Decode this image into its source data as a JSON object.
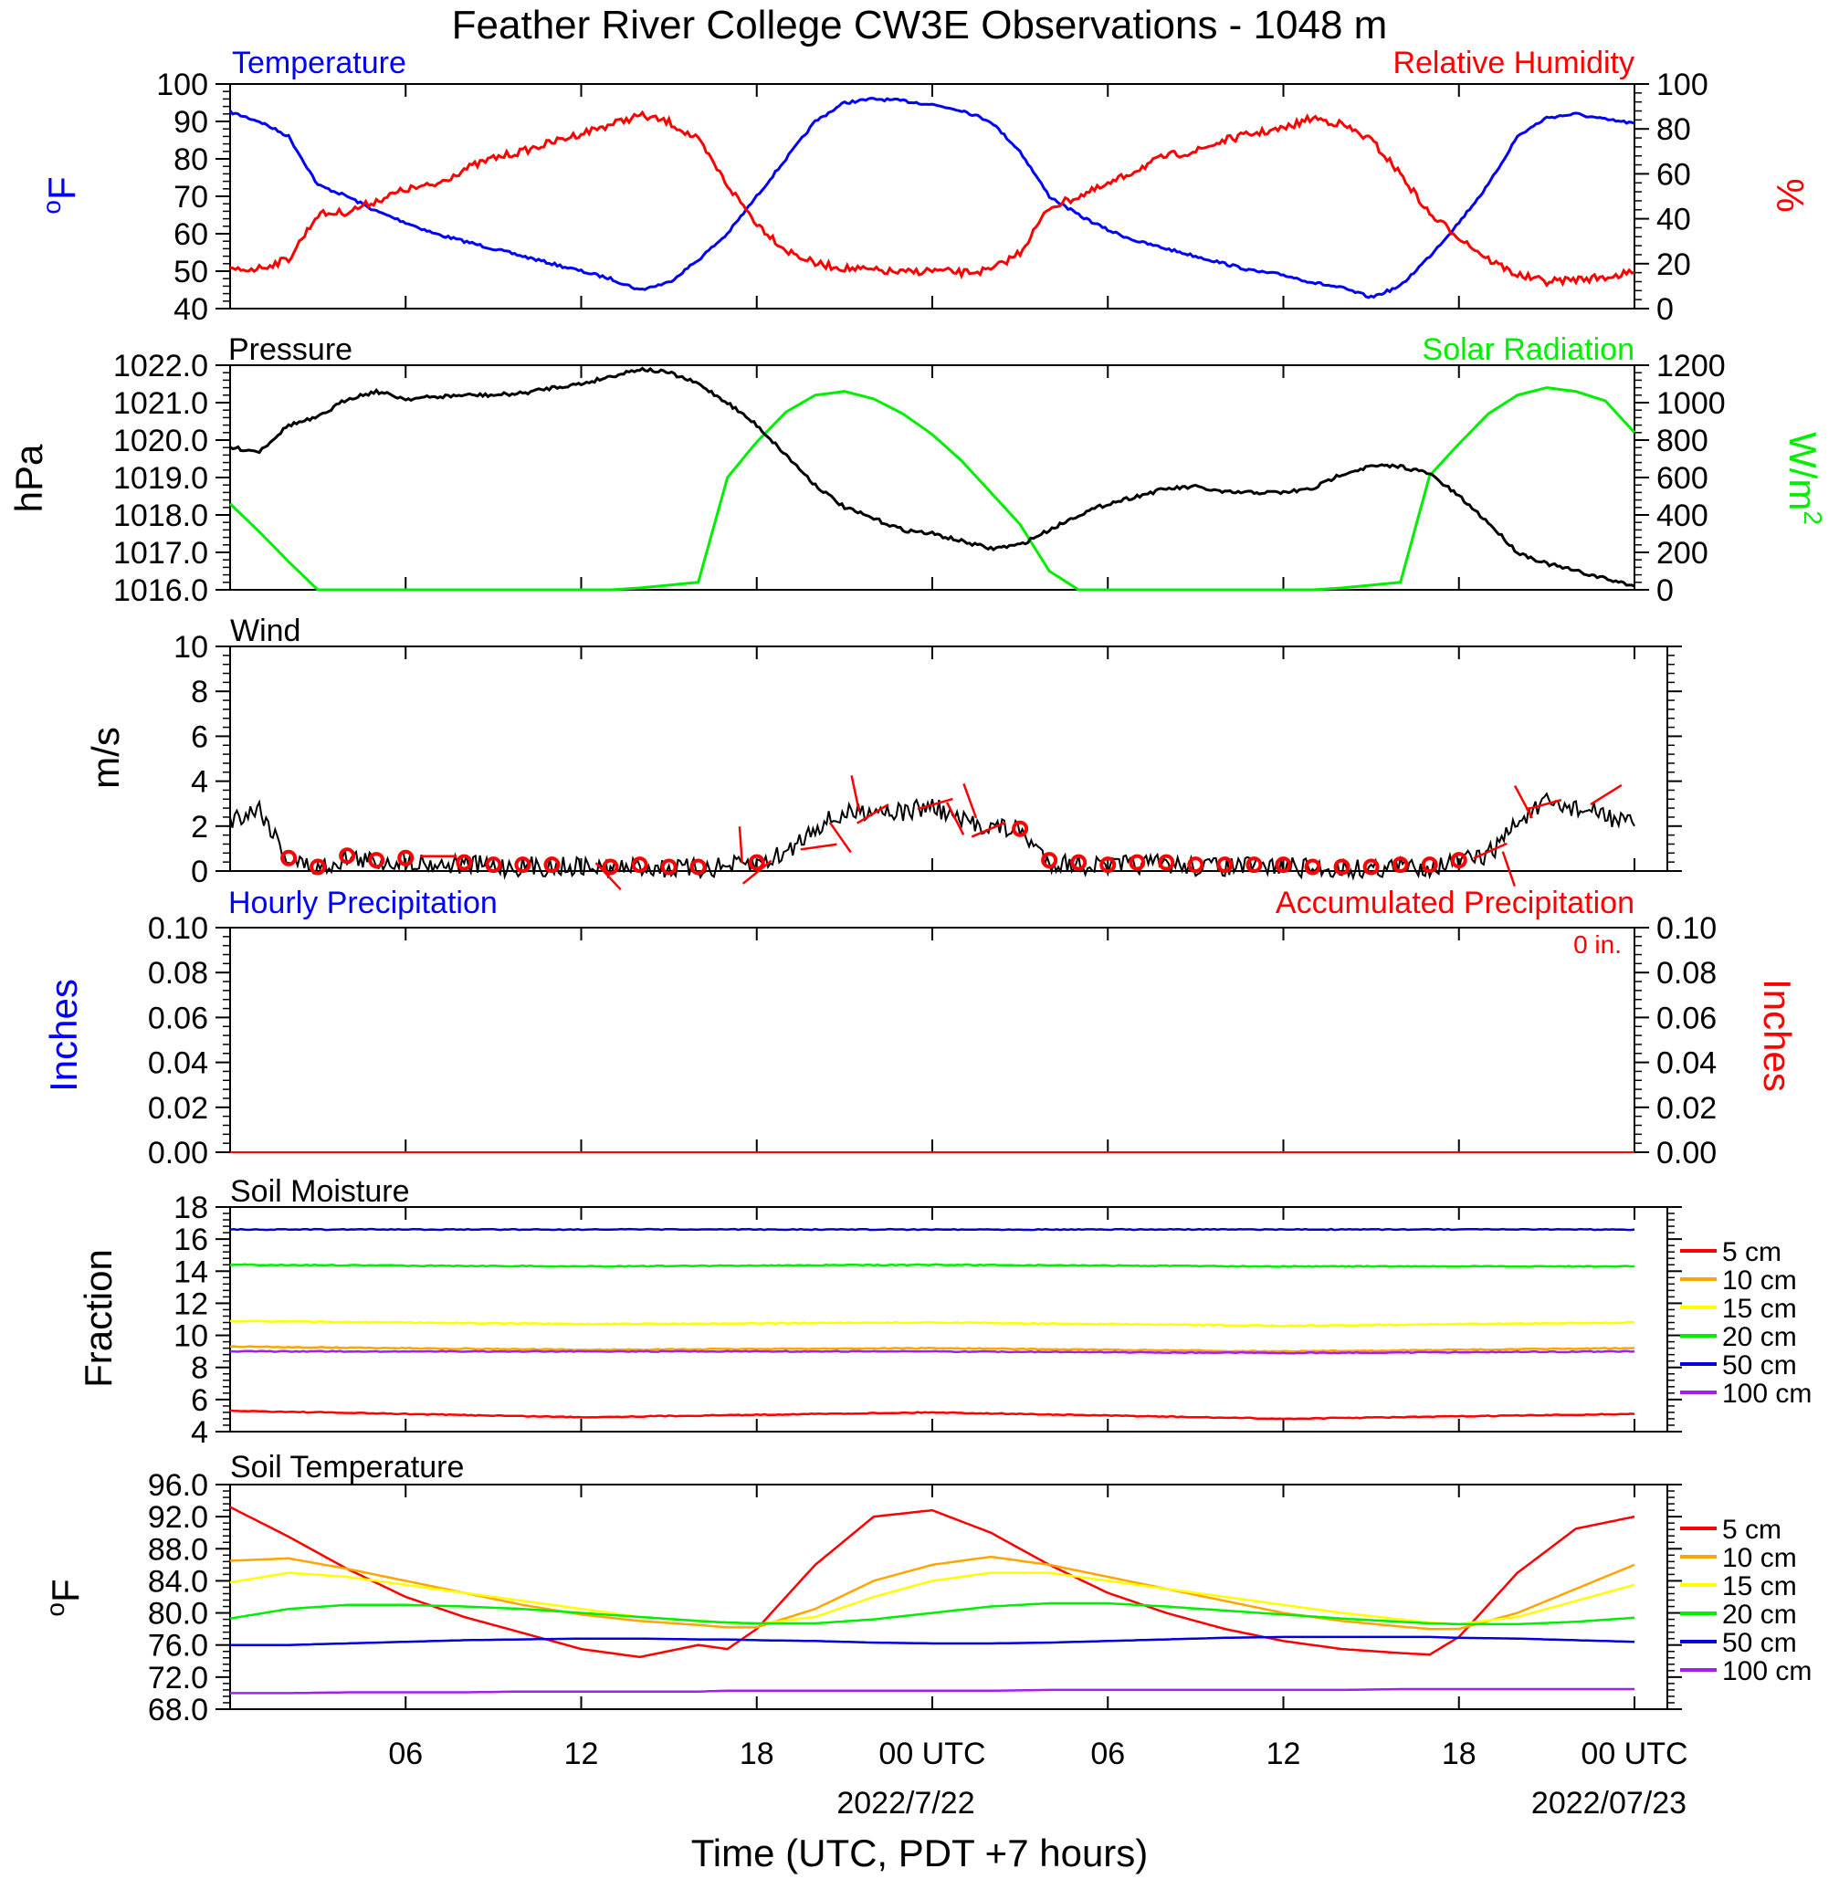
{
  "title": "Feather River College CW3E Observations - 1048 m",
  "xlabel": "Time (UTC, PDT +7 hours)",
  "x_ticks": [
    "06",
    "12",
    "18",
    "00 UTC",
    "06",
    "12",
    "18",
    "00 UTC"
  ],
  "x_dates": [
    "2022/7/22",
    "2022/07/23"
  ],
  "colors": {
    "temperature": "#0000ff",
    "humidity": "#ff0000",
    "pressure": "#000000",
    "solar": "#00ee00",
    "wind": "#000000",
    "barbs": "#ff0000"
  },
  "chart_data": [
    {
      "type": "line",
      "panel": "temperature-humidity",
      "title_left": "Temperature",
      "title_right": "Relative Humidity",
      "ylabel_left": "oF",
      "ylabel_right": "%",
      "ylim_left": [
        40,
        100
      ],
      "ylim_right": [
        0,
        100
      ],
      "yticks_left": [
        "40",
        "50",
        "60",
        "70",
        "80",
        "90",
        "100"
      ],
      "yticks_right": [
        "0",
        "20",
        "40",
        "60",
        "80",
        "100"
      ],
      "x_hours": [
        0,
        1,
        2,
        3,
        4,
        5,
        6,
        7,
        8,
        9,
        10,
        11,
        12,
        13,
        14,
        15,
        16,
        17,
        18,
        19,
        20,
        21,
        22,
        23,
        24,
        25,
        26,
        27,
        28,
        29,
        30,
        31,
        32,
        33,
        34,
        35,
        36,
        37,
        38,
        39,
        40,
        41,
        42,
        43,
        44,
        45,
        46,
        47,
        48
      ],
      "series": [
        {
          "name": "Temperature",
          "axis": "left",
          "values": [
            92.5,
            90,
            86,
            73,
            70,
            66,
            63,
            60,
            58,
            56,
            54,
            52,
            50,
            48,
            45,
            47,
            53,
            60,
            70,
            80,
            90,
            95,
            96,
            95.5,
            94.5,
            93,
            90,
            82,
            70,
            65,
            61,
            58,
            56,
            54,
            52,
            50,
            49,
            47,
            45.5,
            43,
            46,
            54,
            63,
            73,
            86,
            91,
            92,
            90.5,
            89.5
          ]
        },
        {
          "name": "Relative Humidity",
          "axis": "right",
          "values": [
            17,
            18,
            22,
            42,
            43,
            48,
            53,
            55,
            62,
            67,
            70,
            74,
            78,
            82,
            86,
            83,
            75,
            55,
            38,
            26,
            20,
            18,
            17,
            16,
            17,
            16,
            17,
            25,
            45,
            50,
            55,
            62,
            68,
            70,
            75,
            78,
            80,
            85,
            82,
            75,
            60,
            42,
            32,
            22,
            15,
            12,
            13,
            14,
            16
          ]
        }
      ]
    },
    {
      "type": "line",
      "panel": "pressure-solar",
      "title_left": "Pressure",
      "title_right": "Solar Radiation",
      "ylabel_left": "hPa",
      "ylabel_right": "W/m2",
      "ylim_left": [
        1016,
        1022
      ],
      "ylim_right": [
        0,
        1200
      ],
      "yticks_left": [
        "1016.0",
        "1017.0",
        "1018.0",
        "1019.0",
        "1020.0",
        "1021.0",
        "1022.0"
      ],
      "yticks_right": [
        "0",
        "200",
        "400",
        "600",
        "800",
        "1000",
        "1200"
      ],
      "x_hours": [
        0,
        1,
        2,
        3,
        4,
        5,
        6,
        7,
        8,
        9,
        10,
        11,
        12,
        13,
        14,
        15,
        16,
        17,
        18,
        19,
        20,
        21,
        22,
        23,
        24,
        25,
        26,
        27,
        28,
        29,
        30,
        31,
        32,
        33,
        34,
        35,
        36,
        37,
        38,
        39,
        40,
        41,
        42,
        43,
        44,
        45,
        46,
        47,
        48
      ],
      "series": [
        {
          "name": "Pressure",
          "axis": "left",
          "values": [
            1019.8,
            1019.7,
            1020.4,
            1020.6,
            1021.1,
            1021.3,
            1021.1,
            1021.15,
            1021.2,
            1021.2,
            1021.25,
            1021.4,
            1021.5,
            1021.7,
            1021.9,
            1021.8,
            1021.5,
            1021.0,
            1020.4,
            1019.6,
            1018.8,
            1018.2,
            1017.9,
            1017.6,
            1017.5,
            1017.3,
            1017.1,
            1017.2,
            1017.6,
            1018.0,
            1018.3,
            1018.5,
            1018.7,
            1018.75,
            1018.6,
            1018.6,
            1018.6,
            1018.7,
            1019.1,
            1019.3,
            1019.3,
            1019.1,
            1018.5,
            1017.8,
            1017.0,
            1016.7,
            1016.5,
            1016.3,
            1016.1
          ]
        },
        {
          "name": "Solar Radiation",
          "axis": "right",
          "values": [
            460,
            310,
            150,
            0,
            0,
            0,
            0,
            0,
            0,
            0,
            0,
            0,
            0,
            0,
            10,
            25,
            40,
            600,
            790,
            950,
            1040,
            1060,
            1020,
            940,
            830,
            690,
            520,
            350,
            100,
            0,
            0,
            0,
            0,
            0,
            0,
            0,
            0,
            0,
            10,
            25,
            40,
            610,
            780,
            940,
            1040,
            1080,
            1060,
            1010,
            840
          ]
        }
      ]
    },
    {
      "type": "line",
      "panel": "wind",
      "title": "Wind",
      "ylabel": "m/s",
      "ylim": [
        0,
        10
      ],
      "yticks": [
        "0",
        "2",
        "4",
        "6",
        "8",
        "10"
      ],
      "x_hours": [
        0,
        1,
        2,
        3,
        4,
        5,
        6,
        7,
        8,
        9,
        10,
        11,
        12,
        13,
        14,
        15,
        16,
        17,
        18,
        19,
        20,
        21,
        22,
        23,
        24,
        25,
        26,
        27,
        28,
        29,
        30,
        31,
        32,
        33,
        34,
        35,
        36,
        37,
        38,
        39,
        40,
        41,
        42,
        43,
        44,
        45,
        46,
        47,
        48
      ],
      "series": [
        {
          "name": "Wind speed",
          "values": [
            2.3,
            2.8,
            0.5,
            0.1,
            0.6,
            0.4,
            0.5,
            0.3,
            0.3,
            0.2,
            0.2,
            0.2,
            0.2,
            0.1,
            0.2,
            0.1,
            0.1,
            0.2,
            0.3,
            0.8,
            2.0,
            2.5,
            2.8,
            2.6,
            2.9,
            2.2,
            2.0,
            1.8,
            0.4,
            0.3,
            0.2,
            0.3,
            0.3,
            0.2,
            0.2,
            0.2,
            0.2,
            0.1,
            0.1,
            0.1,
            0.2,
            0.2,
            0.4,
            0.7,
            2.2,
            3.0,
            2.8,
            2.5,
            2.0
          ]
        }
      ],
      "calm_hours": [
        2,
        3,
        4,
        5,
        6,
        8,
        9,
        10,
        11,
        13,
        14,
        15,
        16,
        18,
        27,
        28,
        29,
        30,
        31,
        32,
        33,
        34,
        35,
        36,
        37,
        38,
        39,
        40,
        41,
        42
      ],
      "barb_hours": [
        6.5,
        12.5,
        17.5,
        18.5,
        19.5,
        20.5,
        21.5,
        22.5,
        23.5,
        24.5,
        25.5,
        26.5,
        42.5,
        43.5,
        44.5,
        45.5,
        46.5
      ]
    },
    {
      "type": "line",
      "panel": "precipitation",
      "title_left": "Hourly Precipitation",
      "title_right": "Accumulated Precipitation",
      "annotation": "0 in.",
      "ylabel_left": "Inches",
      "ylabel_right": "Inches",
      "ylim": [
        0,
        0.1
      ],
      "yticks": [
        "0.00",
        "0.02",
        "0.04",
        "0.06",
        "0.08",
        "0.10"
      ],
      "series": [
        {
          "name": "Hourly Precipitation",
          "values": [
            0,
            0
          ]
        },
        {
          "name": "Accumulated Precipitation",
          "values": [
            0,
            0
          ]
        }
      ]
    },
    {
      "type": "line",
      "panel": "soil-moisture",
      "title": "Soil Moisture",
      "ylabel": "Fraction",
      "ylim": [
        4,
        18
      ],
      "yticks": [
        "4",
        "6",
        "8",
        "10",
        "12",
        "14",
        "16",
        "18"
      ],
      "x_hours": [
        0,
        12,
        24,
        36,
        48
      ],
      "legend": [
        "5 cm",
        "10 cm",
        "15 cm",
        "20 cm",
        "50 cm",
        "100 cm"
      ],
      "series": [
        {
          "name": "5 cm",
          "color": "#ff0000",
          "values": [
            5.3,
            4.9,
            5.2,
            4.8,
            5.1
          ]
        },
        {
          "name": "10 cm",
          "color": "#ffa500",
          "values": [
            9.3,
            9.1,
            9.2,
            9.0,
            9.2
          ]
        },
        {
          "name": "15 cm",
          "color": "#ffff00",
          "values": [
            10.9,
            10.7,
            10.8,
            10.6,
            10.8
          ]
        },
        {
          "name": "20 cm",
          "color": "#00ee00",
          "values": [
            14.4,
            14.3,
            14.4,
            14.3,
            14.3
          ]
        },
        {
          "name": "50 cm",
          "color": "#0000dd",
          "values": [
            16.6,
            16.6,
            16.6,
            16.6,
            16.6
          ]
        },
        {
          "name": "100 cm",
          "color": "#a020f0",
          "values": [
            9.0,
            9.0,
            9.0,
            8.9,
            9.0
          ]
        }
      ]
    },
    {
      "type": "line",
      "panel": "soil-temperature",
      "title": "Soil Temperature",
      "ylabel": "oF",
      "ylim": [
        68,
        96
      ],
      "yticks": [
        "68.0",
        "72.0",
        "76.0",
        "80.0",
        "84.0",
        "88.0",
        "92.0",
        "96.0"
      ],
      "x_hours": [
        0,
        2,
        4,
        6,
        8,
        10,
        12,
        14,
        16,
        17,
        18,
        20,
        22,
        24,
        26,
        28,
        30,
        32,
        34,
        36,
        38,
        40,
        41,
        42,
        44,
        46,
        48
      ],
      "legend": [
        "5 cm",
        "10 cm",
        "15 cm",
        "20 cm",
        "50 cm",
        "100 cm"
      ],
      "series": [
        {
          "name": "5 cm",
          "color": "#ff0000",
          "values": [
            93.2,
            89.5,
            85.5,
            82.0,
            79.5,
            77.5,
            75.5,
            74.5,
            76.0,
            75.5,
            78.0,
            86.0,
            92.0,
            92.8,
            90.0,
            86.0,
            82.5,
            80.0,
            78.0,
            76.5,
            75.5,
            75.0,
            74.8,
            77.0,
            85.0,
            90.5,
            92.0
          ]
        },
        {
          "name": "10 cm",
          "color": "#ffa500",
          "values": [
            86.5,
            86.8,
            85.5,
            84.0,
            82.5,
            81.0,
            79.8,
            79.0,
            78.5,
            78.2,
            78.2,
            80.5,
            84.0,
            86.0,
            87.0,
            86.0,
            84.5,
            83.0,
            81.5,
            80.0,
            79.0,
            78.3,
            78.0,
            78.0,
            80.0,
            83.0,
            86.0
          ]
        },
        {
          "name": "15 cm",
          "color": "#ffff00",
          "values": [
            83.8,
            85.0,
            84.5,
            83.5,
            82.5,
            81.5,
            80.5,
            79.5,
            79.0,
            78.8,
            78.6,
            79.5,
            82.0,
            84.0,
            85.0,
            85.0,
            84.0,
            83.0,
            82.0,
            81.0,
            80.0,
            79.2,
            78.8,
            78.6,
            79.5,
            81.5,
            83.5
          ]
        },
        {
          "name": "20 cm",
          "color": "#00ee00",
          "values": [
            79.3,
            80.5,
            81.0,
            81.0,
            80.8,
            80.5,
            80.0,
            79.5,
            79.0,
            78.8,
            78.7,
            78.7,
            79.2,
            80.0,
            80.8,
            81.2,
            81.2,
            80.8,
            80.3,
            79.8,
            79.3,
            78.9,
            78.7,
            78.6,
            78.6,
            78.9,
            79.4
          ]
        },
        {
          "name": "50 cm",
          "color": "#0000dd",
          "values": [
            76.0,
            76.0,
            76.2,
            76.4,
            76.6,
            76.7,
            76.8,
            76.8,
            76.7,
            76.7,
            76.6,
            76.5,
            76.3,
            76.2,
            76.2,
            76.3,
            76.5,
            76.7,
            76.9,
            77.0,
            77.0,
            77.0,
            77.0,
            76.9,
            76.8,
            76.6,
            76.4
          ]
        },
        {
          "name": "100 cm",
          "color": "#a020f0",
          "values": [
            70.0,
            70.0,
            70.1,
            70.1,
            70.1,
            70.2,
            70.2,
            70.2,
            70.2,
            70.3,
            70.3,
            70.3,
            70.3,
            70.3,
            70.3,
            70.4,
            70.4,
            70.4,
            70.4,
            70.4,
            70.4,
            70.5,
            70.5,
            70.5,
            70.5,
            70.5,
            70.5
          ]
        }
      ]
    }
  ]
}
